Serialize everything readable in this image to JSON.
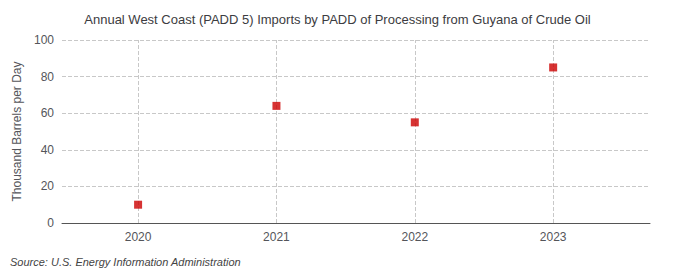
{
  "chart_data": {
    "type": "scatter",
    "title": "Annual West Coast (PADD 5) Imports by PADD of Processing from Guyana of Crude Oil",
    "ylabel": "Thousand Barrels per Day",
    "annotation": "Source: U.S. Energy Information Administration",
    "x": [
      2020,
      2021,
      2022,
      2023
    ],
    "values": [
      10,
      64,
      55,
      85
    ],
    "color": "#cc0000",
    "marker": "square",
    "xlim": [
      2019.45,
      2023.7
    ],
    "xticks": [
      2020,
      2021,
      2022,
      2023
    ],
    "ylim": [
      0,
      100
    ],
    "yticks": [
      0,
      20,
      40,
      60,
      80,
      100
    ],
    "grid": true
  }
}
